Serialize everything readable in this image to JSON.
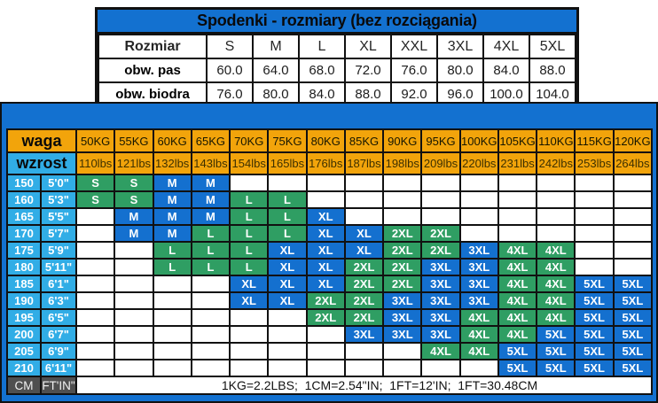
{
  "colors": {
    "blue": "#1371d0",
    "cellblue": "#1470cf",
    "green": "#2f9e63",
    "cyan": "#31ade6",
    "orange": "#f2a40b",
    "gray": "#4f4f4f"
  },
  "top_table": {
    "title": "Spodenki - rozmiary (bez rozciągania)",
    "header_label": "Rozmiar",
    "sizes": [
      "S",
      "M",
      "L",
      "XL",
      "XXL",
      "3XL",
      "4XL",
      "5XL"
    ],
    "rows": [
      {
        "label": "obw. pas",
        "values": [
          "60.0",
          "64.0",
          "68.0",
          "72.0",
          "76.0",
          "80.0",
          "84.0",
          "88.0"
        ]
      },
      {
        "label": "obw. biodra",
        "values": [
          "76.0",
          "80.0",
          "84.0",
          "88.0",
          "92.0",
          "96.0",
          "100.0",
          "104.0"
        ]
      }
    ]
  },
  "size_chart": {
    "weight_label": "waga",
    "height_label": "wzrost",
    "weights_kg": [
      "50KG",
      "55KG",
      "60KG",
      "65KG",
      "70KG",
      "75KG",
      "80KG",
      "85KG",
      "90KG",
      "95KG",
      "100KG",
      "105KG",
      "110KG",
      "115KG",
      "120KG"
    ],
    "weights_lbs": [
      "110lbs",
      "121lbs",
      "132lbs",
      "143lbs",
      "154lbs",
      "165lbs",
      "176lbs",
      "187lbs",
      "198lbs",
      "209lbs",
      "220lbs",
      "231lbs",
      "242lbs",
      "253lbs",
      "264lbs"
    ],
    "size_colors": {
      "S": "green",
      "M": "blue",
      "L": "green",
      "XL": "blue",
      "2XL": "green",
      "3XL": "blue",
      "4XL": "green",
      "5XL": "blue"
    },
    "rows": [
      {
        "cm": "150",
        "ftin": "5'0\"",
        "cells": [
          "S",
          "S",
          "M",
          "M",
          "",
          "",
          "",
          "",
          "",
          "",
          "",
          "",
          "",
          "",
          ""
        ]
      },
      {
        "cm": "160",
        "ftin": "5'3\"",
        "cells": [
          "S",
          "S",
          "M",
          "M",
          "L",
          "L",
          "",
          "",
          "",
          "",
          "",
          "",
          "",
          "",
          ""
        ]
      },
      {
        "cm": "165",
        "ftin": "5'5\"",
        "cells": [
          "",
          "M",
          "M",
          "M",
          "L",
          "L",
          "XL",
          "",
          "",
          "",
          "",
          "",
          "",
          "",
          ""
        ]
      },
      {
        "cm": "170",
        "ftin": "5'7\"",
        "cells": [
          "",
          "M",
          "M",
          "L",
          "L",
          "L",
          "XL",
          "XL",
          "2XL",
          "2XL",
          "",
          "",
          "",
          "",
          ""
        ]
      },
      {
        "cm": "175",
        "ftin": "5'9\"",
        "cells": [
          "",
          "",
          "L",
          "L",
          "L",
          "XL",
          "XL",
          "XL",
          "2XL",
          "2XL",
          "3XL",
          "4XL",
          "4XL",
          "",
          ""
        ]
      },
      {
        "cm": "180",
        "ftin": "5'11\"",
        "cells": [
          "",
          "",
          "L",
          "L",
          "L",
          "XL",
          "XL",
          "2XL",
          "2XL",
          "3XL",
          "3XL",
          "4XL",
          "4XL",
          "",
          ""
        ]
      },
      {
        "cm": "185",
        "ftin": "6'1\"",
        "cells": [
          "",
          "",
          "",
          "",
          "XL",
          "XL",
          "XL",
          "2XL",
          "2XL",
          "3XL",
          "3XL",
          "4XL",
          "4XL",
          "5XL",
          "5XL"
        ]
      },
      {
        "cm": "190",
        "ftin": "6'3\"",
        "cells": [
          "",
          "",
          "",
          "",
          "XL",
          "XL",
          "2XL",
          "2XL",
          "3XL",
          "3XL",
          "3XL",
          "4XL",
          "4XL",
          "5XL",
          "5XL"
        ]
      },
      {
        "cm": "195",
        "ftin": "6'5\"",
        "cells": [
          "",
          "",
          "",
          "",
          "",
          "",
          "2XL",
          "2XL",
          "3XL",
          "3XL",
          "4XL",
          "4XL",
          "4XL",
          "5XL",
          "5XL"
        ]
      },
      {
        "cm": "200",
        "ftin": "6'7\"",
        "cells": [
          "",
          "",
          "",
          "",
          "",
          "",
          "",
          "3XL",
          "3XL",
          "3XL",
          "4XL",
          "4XL",
          "5XL",
          "5XL",
          "5XL"
        ]
      },
      {
        "cm": "205",
        "ftin": "6'9\"",
        "cells": [
          "",
          "",
          "",
          "",
          "",
          "",
          "",
          "",
          "",
          "4XL",
          "4XL",
          "5XL",
          "5XL",
          "5XL",
          "5XL"
        ]
      },
      {
        "cm": "210",
        "ftin": "6'11\"",
        "cells": [
          "",
          "",
          "",
          "",
          "",
          "",
          "",
          "",
          "",
          "",
          "",
          "5XL",
          "5XL",
          "5XL",
          "5XL"
        ]
      }
    ],
    "unit_cm": "CM",
    "unit_ftin": "FT'IN\"",
    "note": "1KG=2.2LBS;  1CM=2.54\"IN;  1FT=12'IN;  1FT=30.48CM"
  }
}
